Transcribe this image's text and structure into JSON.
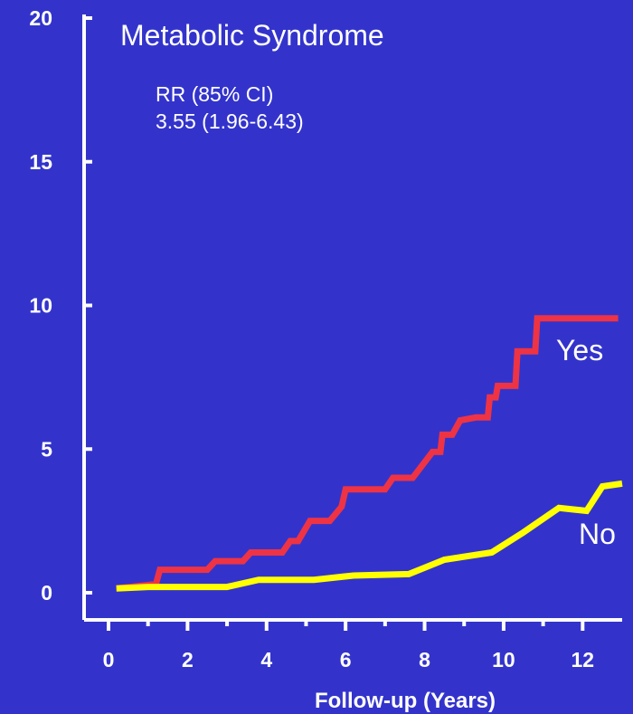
{
  "chart_data": {
    "type": "line",
    "title": "Metabolic Syndrome",
    "annotation": [
      "RR (85% CI)",
      "3.55 (1.96-6.43)"
    ],
    "xlabel": "Follow-up (Years)",
    "ylabel": "",
    "xlim": [
      0,
      13
    ],
    "ylim": [
      0,
      20
    ],
    "x_ticks": [
      "0",
      "2",
      "4",
      "6",
      "8",
      "10",
      "12"
    ],
    "y_ticks": [
      "0",
      "5",
      "10",
      "15",
      "20"
    ],
    "colors": {
      "background": "#3333cc",
      "axis": "#ffffff",
      "yes": "#ee3344",
      "no": "#ffff00"
    },
    "series": [
      {
        "name": "Yes",
        "color": "#ee3344",
        "step": true,
        "points": [
          [
            0.2,
            0.15
          ],
          [
            1.2,
            0.3
          ],
          [
            1.3,
            0.8
          ],
          [
            2.5,
            0.8
          ],
          [
            2.7,
            1.1
          ],
          [
            3.4,
            1.1
          ],
          [
            3.6,
            1.4
          ],
          [
            4.4,
            1.4
          ],
          [
            4.6,
            1.8
          ],
          [
            4.8,
            1.8
          ],
          [
            5.1,
            2.5
          ],
          [
            5.6,
            2.5
          ],
          [
            5.9,
            3.0
          ],
          [
            6.0,
            3.6
          ],
          [
            7.0,
            3.6
          ],
          [
            7.2,
            4.0
          ],
          [
            7.7,
            4.0
          ],
          [
            8.2,
            4.9
          ],
          [
            8.4,
            4.9
          ],
          [
            8.45,
            5.5
          ],
          [
            8.7,
            5.5
          ],
          [
            8.9,
            6.0
          ],
          [
            9.3,
            6.1
          ],
          [
            9.6,
            6.1
          ],
          [
            9.65,
            6.8
          ],
          [
            9.8,
            6.8
          ],
          [
            9.85,
            7.2
          ],
          [
            10.2,
            7.2
          ],
          [
            10.3,
            7.2
          ],
          [
            10.35,
            8.4
          ],
          [
            10.8,
            8.4
          ],
          [
            10.85,
            9.55
          ],
          [
            12.9,
            9.55
          ]
        ]
      },
      {
        "name": "No",
        "color": "#ffff00",
        "step": false,
        "points": [
          [
            0.2,
            0.15
          ],
          [
            1.0,
            0.2
          ],
          [
            3.0,
            0.2
          ],
          [
            3.8,
            0.45
          ],
          [
            5.2,
            0.45
          ],
          [
            6.2,
            0.6
          ],
          [
            7.6,
            0.65
          ],
          [
            8.5,
            1.15
          ],
          [
            9.7,
            1.4
          ],
          [
            10.5,
            2.1
          ],
          [
            11.4,
            2.95
          ],
          [
            12.1,
            2.85
          ],
          [
            12.5,
            3.7
          ],
          [
            13.0,
            3.8
          ]
        ]
      }
    ],
    "legend": "inline"
  }
}
